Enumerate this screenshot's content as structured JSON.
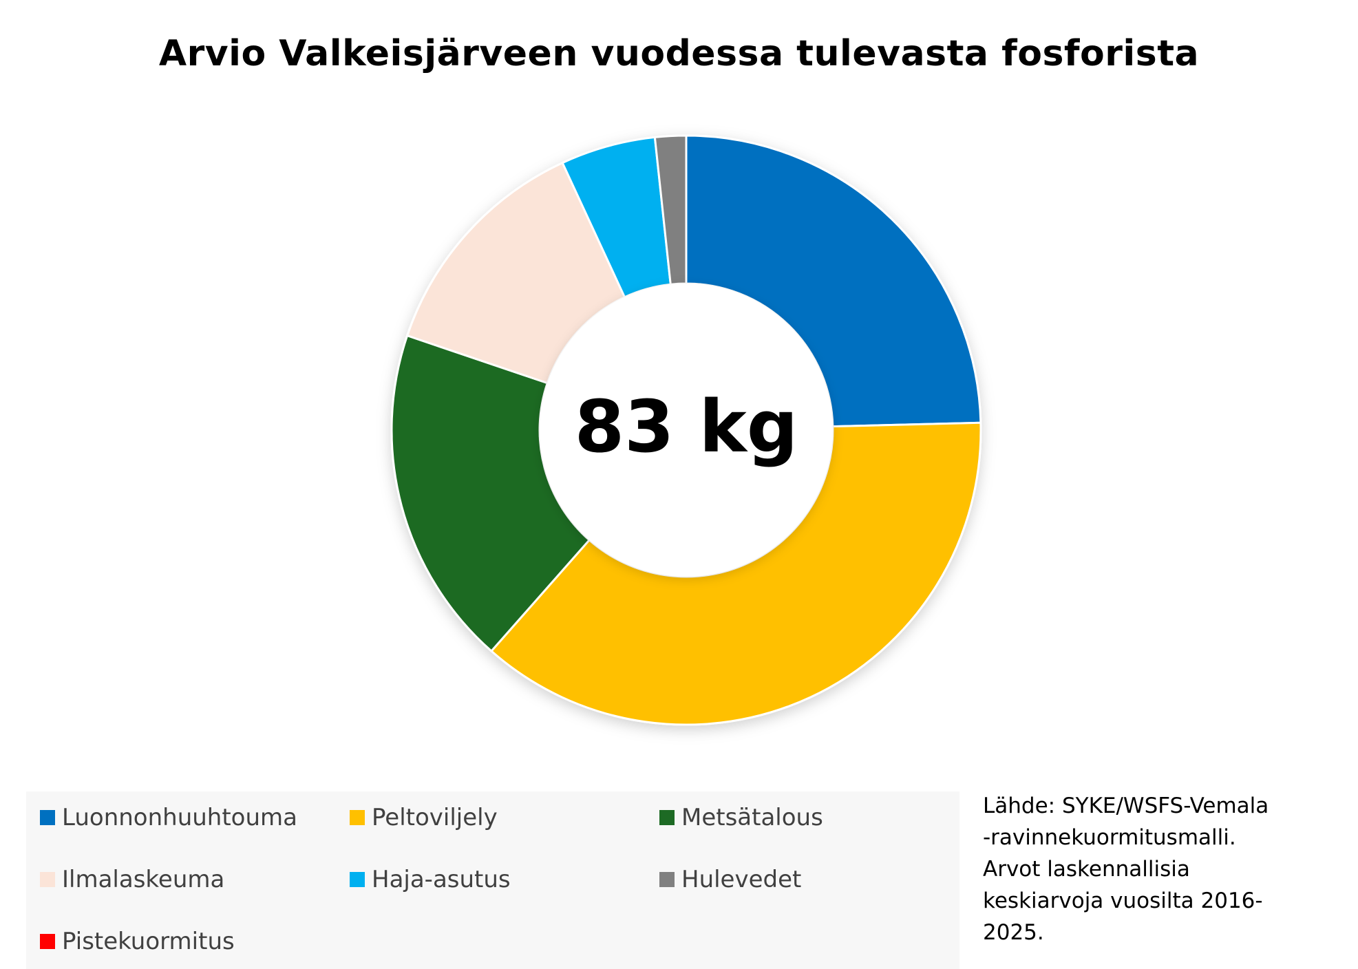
{
  "chart_data": {
    "type": "pie",
    "donut": true,
    "title": "Arvio Valkeisjärveen vuodessa tulevasta fosforista",
    "center_label": "83 kg",
    "categories": [
      "Luonnonhuuhtouma",
      "Peltoviljely",
      "Metsätalous",
      "Ilmalaskeuma",
      "Haja-asutus",
      "Hulevedet",
      "Pistekuormitus"
    ],
    "values": [
      24.6,
      36.9,
      18.7,
      12.9,
      5.2,
      1.7,
      0
    ],
    "unit": "%",
    "colors": [
      "#0070c0",
      "#ffc000",
      "#1d6a24",
      "#fbe4d8",
      "#00b0f0",
      "#808080",
      "#ff0000"
    ],
    "legend_position": "bottom-left"
  },
  "source_note": {
    "lines": [
      "Lähde: SYKE/WSFS-Vemala",
      "-ravinnekuormitusmalli.",
      "Arvot laskennallisia",
      "keskiarvoja vuosilta 2016-",
      "2025."
    ]
  }
}
